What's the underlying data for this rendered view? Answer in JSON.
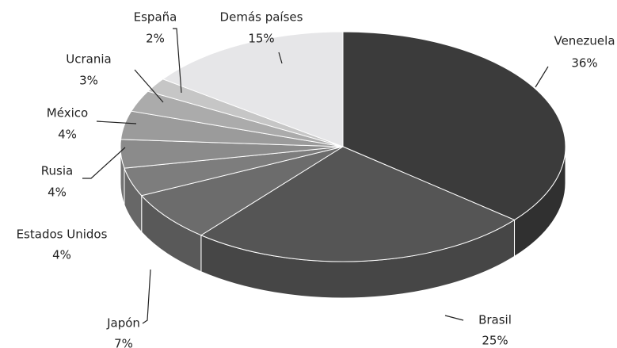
{
  "chart_data": {
    "type": "pie",
    "categories": [
      "Venezuela",
      "Brasil",
      "Japón",
      "Estados Unidos",
      "Rusia",
      "México",
      "Ucrania",
      "España",
      "Demás países"
    ],
    "values": [
      36,
      25,
      7,
      4,
      4,
      4,
      3,
      2,
      15
    ],
    "value_labels": [
      "36%",
      "25%",
      "7%",
      "4%",
      "4%",
      "4%",
      "3%",
      "2%",
      "15%"
    ],
    "colors": [
      "#3b3b3b",
      "#555555",
      "#6c6c6c",
      "#7d7d7d",
      "#8b8b8b",
      "#9b9b9b",
      "#ababab",
      "#c6c6c6",
      "#e6e6e8"
    ]
  }
}
